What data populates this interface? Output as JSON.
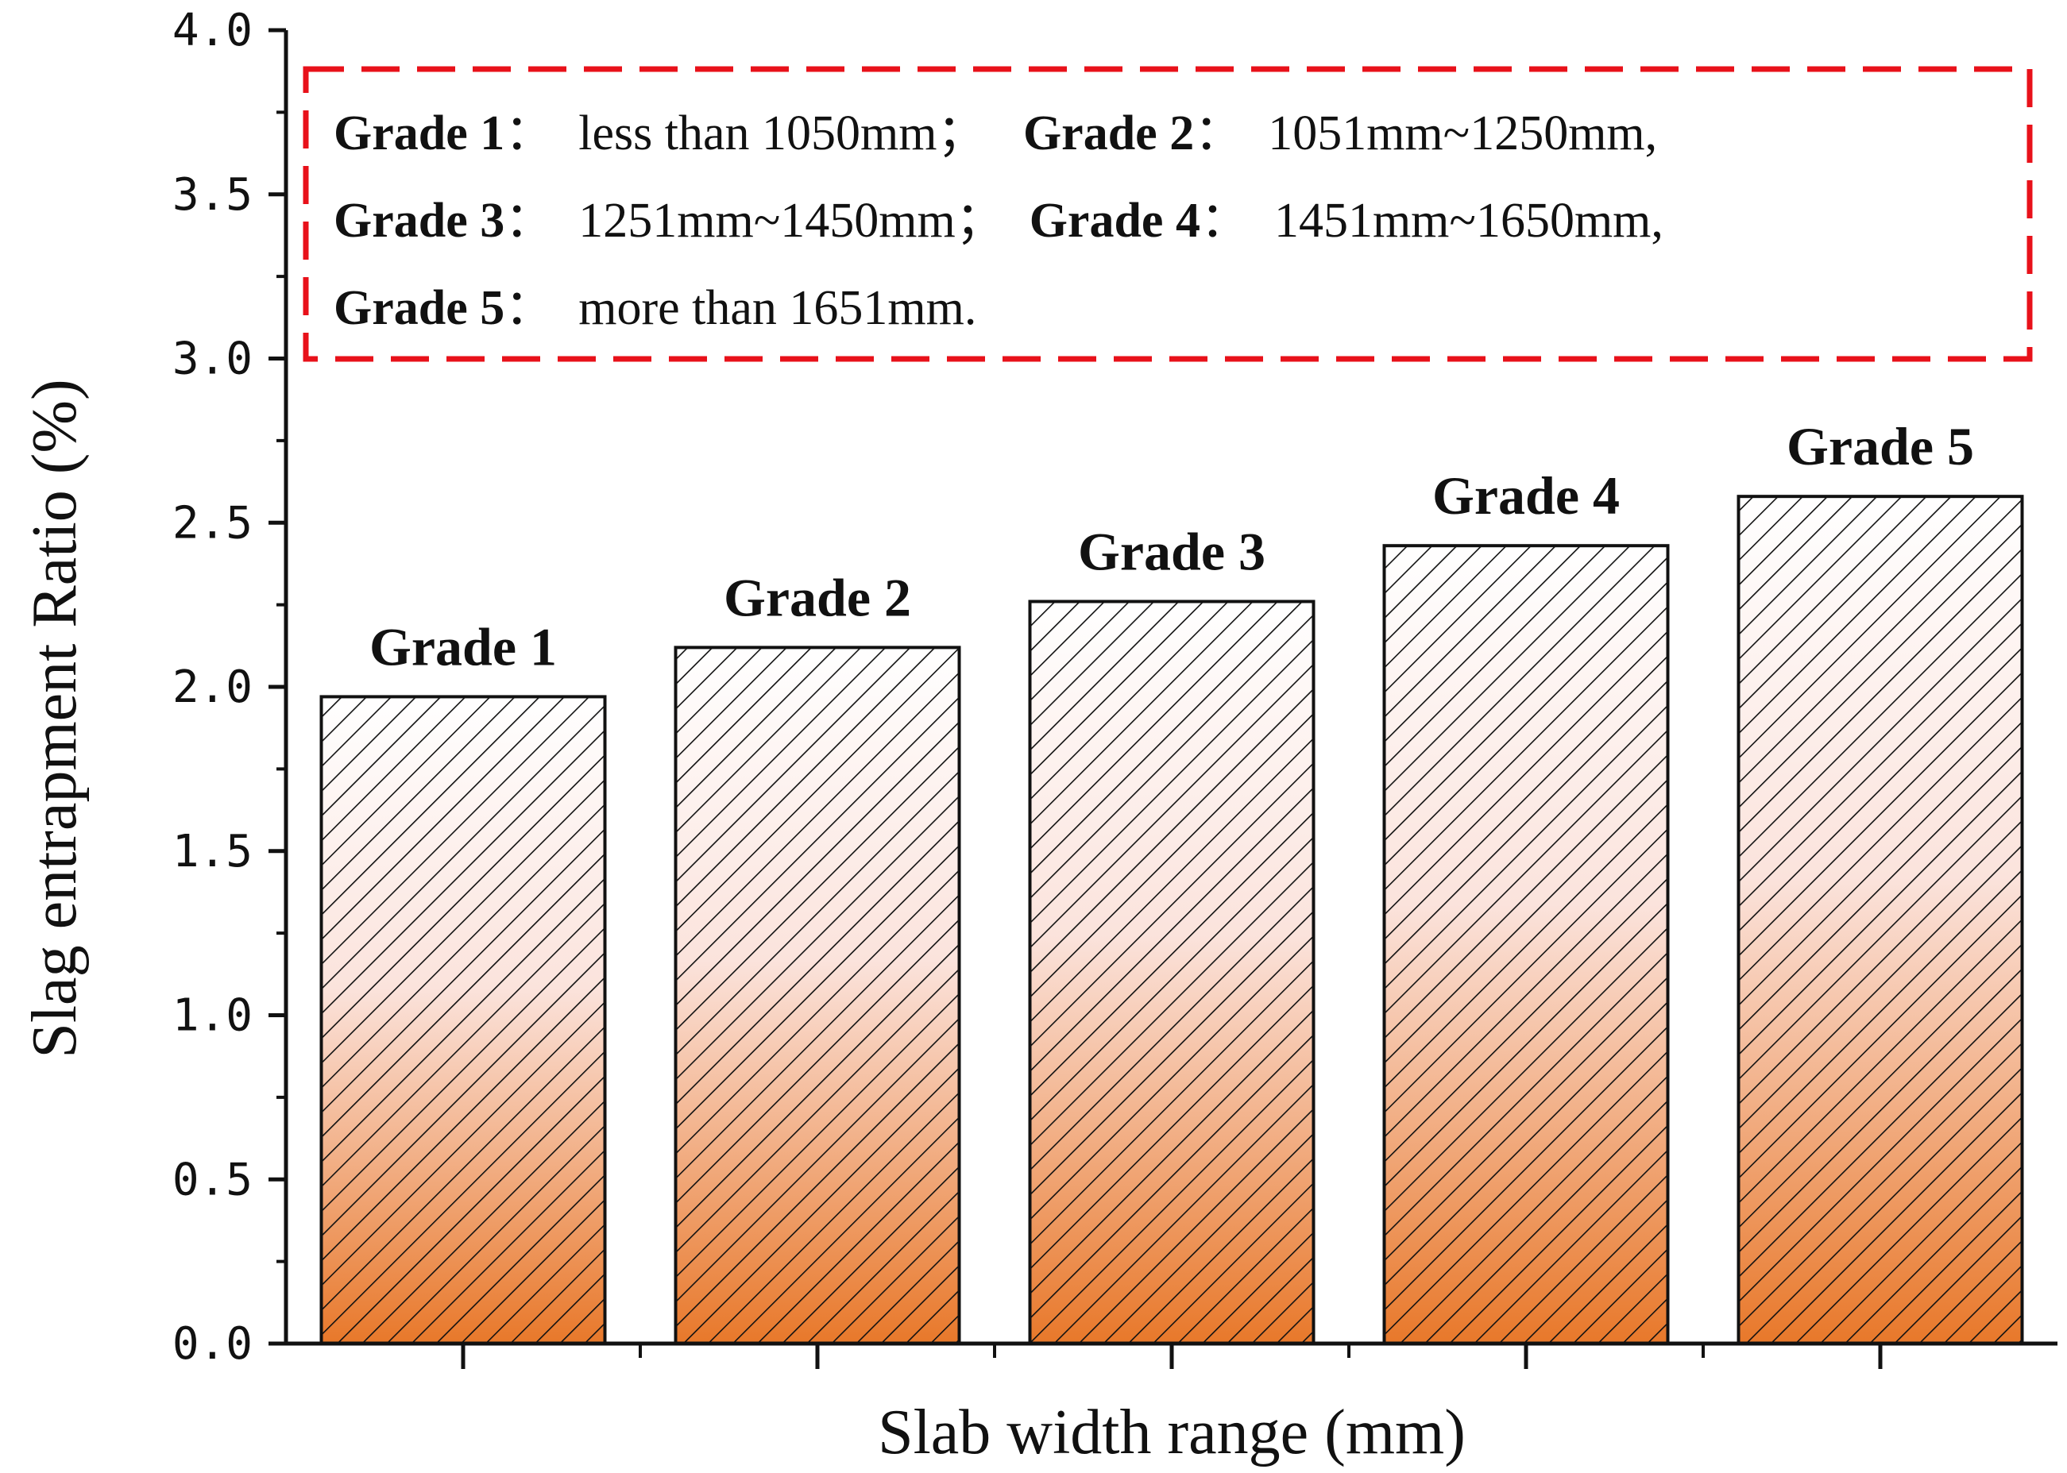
{
  "chart_data": {
    "type": "bar",
    "categories": [
      "Grade 1",
      "Grade 2",
      "Grade 3",
      "Grade 4",
      "Grade 5"
    ],
    "values": [
      1.97,
      2.12,
      2.26,
      2.43,
      2.58
    ],
    "xlabel": "Slab width range (mm)",
    "ylabel": "Slag entrapment Ratio (%)",
    "ylim": [
      0,
      4.0
    ],
    "yticks": [
      "0.0",
      "0.5",
      "1.0",
      "1.5",
      "2.0",
      "2.5",
      "3.0",
      "3.5",
      "4.0"
    ],
    "bar_fill": {
      "top": "#ffffff",
      "bottom": "#e8782a",
      "hatch": "#111111",
      "pattern": "diagonal-hatch"
    },
    "grid": false,
    "annotation": {
      "border_color": "#e8111a",
      "lines": [
        [
          {
            "text": "Grade 1",
            "bold": true
          },
          {
            "text": "：  less than 1050mm；   ",
            "bold": false
          },
          {
            "text": "Grade 2",
            "bold": true
          },
          {
            "text": "：  1051mm~1250mm,",
            "bold": false
          }
        ],
        [
          {
            "text": "Grade 3",
            "bold": true
          },
          {
            "text": "：  1251mm~1450mm；  ",
            "bold": false
          },
          {
            "text": "Grade 4",
            "bold": true
          },
          {
            "text": "：  1451mm~1650mm,",
            "bold": false
          }
        ],
        [
          {
            "text": "Grade 5",
            "bold": true
          },
          {
            "text": "：  more than 1651mm.",
            "bold": false
          }
        ]
      ]
    }
  }
}
